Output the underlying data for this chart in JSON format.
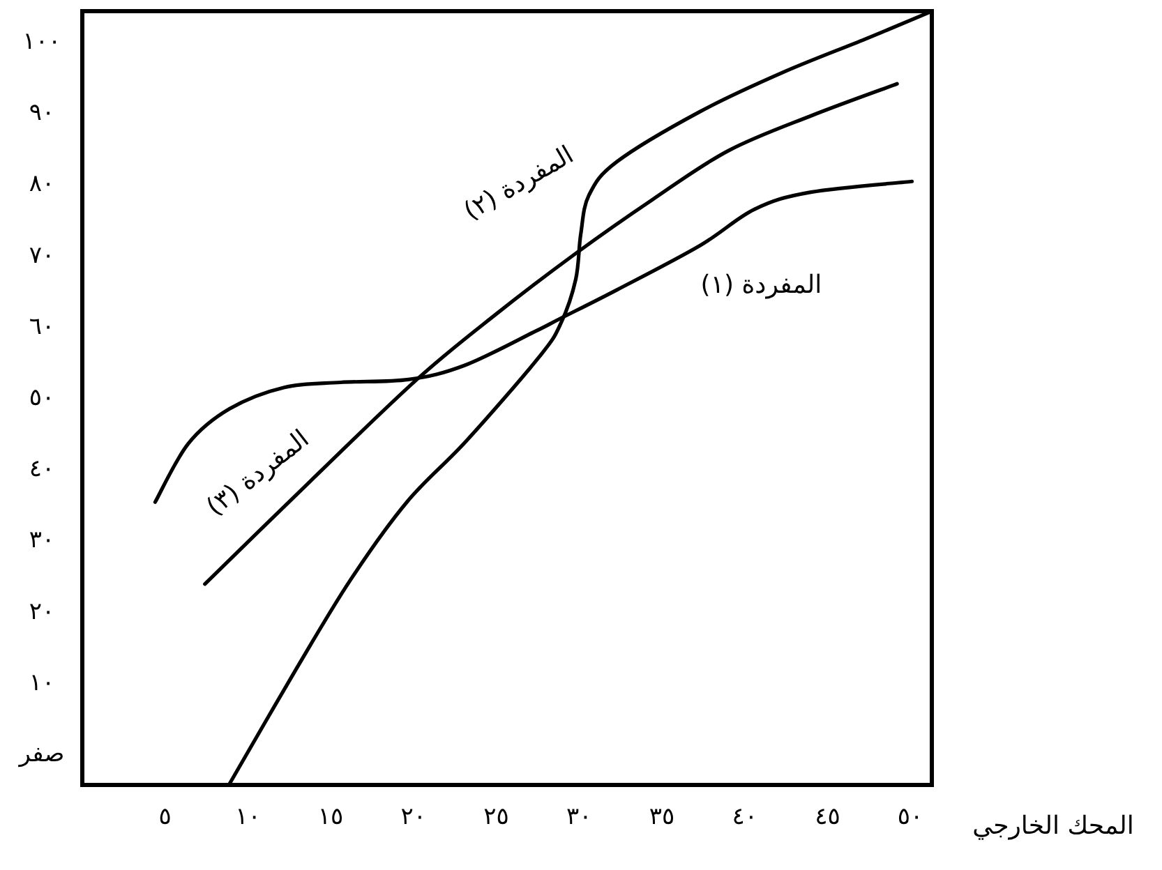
{
  "chart_data": {
    "type": "line",
    "xlabel": "المحك الخارجي",
    "xlim": [
      0,
      51.3
    ],
    "ylim": [
      -4.5,
      104.1
    ],
    "xticks": [
      {
        "value": 5,
        "label": "٥"
      },
      {
        "value": 10,
        "label": "١٠"
      },
      {
        "value": 15,
        "label": "١٥"
      },
      {
        "value": 20,
        "label": "٢٠"
      },
      {
        "value": 25,
        "label": "٢٥"
      },
      {
        "value": 30,
        "label": "٣٠"
      },
      {
        "value": 35,
        "label": "٣٥"
      },
      {
        "value": 40,
        "label": "٤٠"
      },
      {
        "value": 45,
        "label": "٤٥"
      },
      {
        "value": 50,
        "label": "٥٠"
      }
    ],
    "yticks": [
      {
        "value": 0,
        "label": "صفر"
      },
      {
        "value": 10,
        "label": "١٠"
      },
      {
        "value": 20,
        "label": "٢٠"
      },
      {
        "value": 30,
        "label": "٣٠"
      },
      {
        "value": 40,
        "label": "٤٠"
      },
      {
        "value": 50,
        "label": "٥٠"
      },
      {
        "value": 60,
        "label": "٦٠"
      },
      {
        "value": 70,
        "label": "٧٠"
      },
      {
        "value": 80,
        "label": "٨٠"
      },
      {
        "value": 90,
        "label": "٩٠"
      },
      {
        "value": 100,
        "label": "١٠٠"
      }
    ],
    "grid": false,
    "legend": false,
    "marker": "none",
    "line_style": "solid",
    "series": [
      {
        "name": "المفردة (١)",
        "color": "#000000",
        "x": [
          4.4,
          6.4,
          8.9,
          12.2,
          15.6,
          19.7,
          23.1,
          27.3,
          28.9,
          32.3,
          37.3,
          40.6,
          44,
          50.1
        ],
        "values": [
          35.2,
          43.4,
          48.3,
          51.3,
          52,
          52.4,
          54.4,
          59.1,
          61,
          65,
          71.2,
          76.3,
          78.7,
          80.2
        ]
      },
      {
        "name": "المفردة (٢)",
        "color": "#000000",
        "x": [
          8.9,
          12.9,
          16.2,
          19.6,
          23.2,
          27.6,
          28.9,
          29.8,
          30.1,
          30.6,
          32.3,
          37.3,
          42.3,
          47.3,
          51.2
        ],
        "values": [
          -4.3,
          11.7,
          24.3,
          35.2,
          43.8,
          55.6,
          60.3,
          66.5,
          72.8,
          78.3,
          83,
          90,
          95.5,
          100.2,
          104
        ]
      },
      {
        "name": "المفردة (٣)",
        "color": "#000000",
        "x": [
          7.4,
          13.8,
          20.2,
          25,
          29.8,
          34.4,
          39,
          44.1,
          49.2
        ],
        "values": [
          23.7,
          38.2,
          52.4,
          61.6,
          70.1,
          77.6,
          84.5,
          89.5,
          93.9
        ]
      }
    ]
  }
}
